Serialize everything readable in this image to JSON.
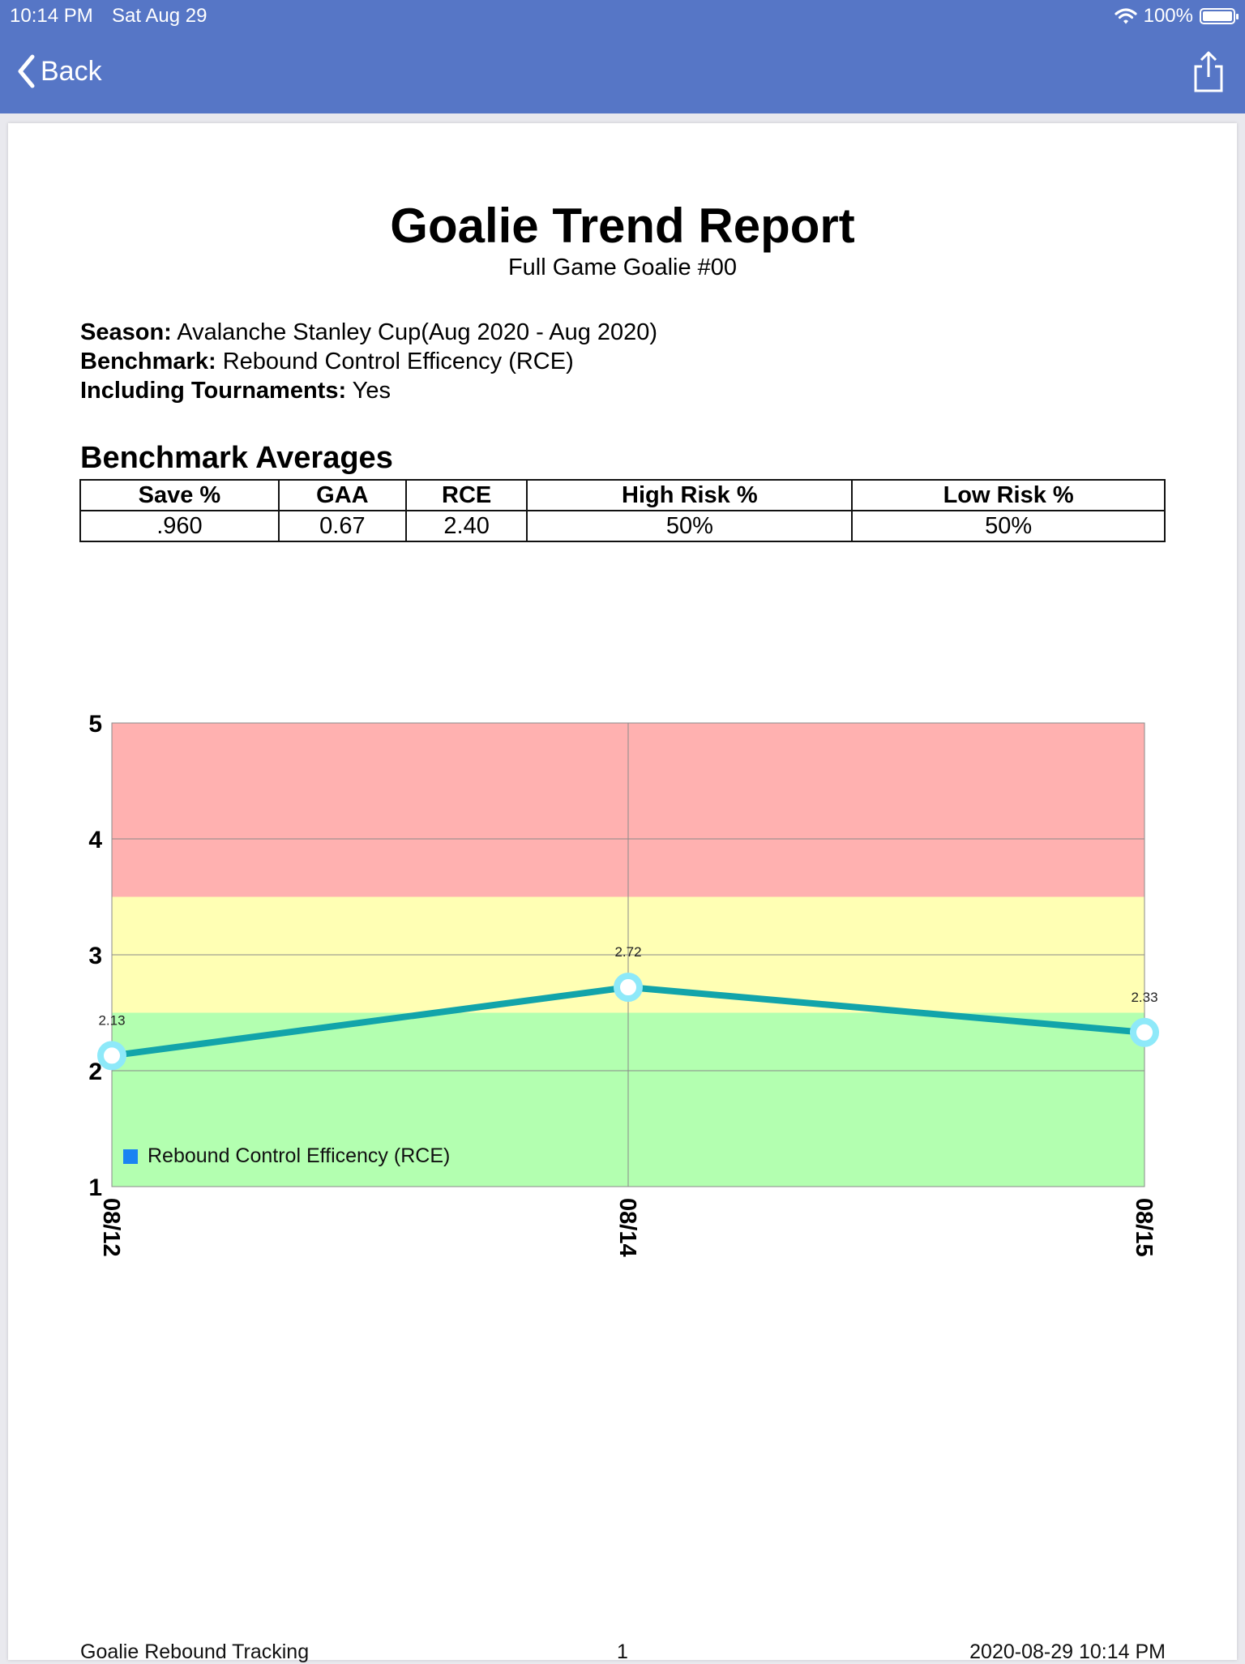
{
  "status_bar": {
    "time": "10:14 PM",
    "date": "Sat Aug 29",
    "battery": "100%"
  },
  "nav": {
    "back_label": "Back",
    "share_icon": "share-icon",
    "back_icon": "chevron-left-icon"
  },
  "report": {
    "title": "Goalie Trend Report",
    "subtitle": "Full Game Goalie #00",
    "season_label": "Season:",
    "season_value": "Avalanche Stanley Cup(Aug 2020 - Aug 2020)",
    "benchmark_label": "Benchmark:",
    "benchmark_value": "Rebound Control Efficency (RCE)",
    "tournaments_label": "Including Tournaments:",
    "tournaments_value": "Yes"
  },
  "averages": {
    "title": "Benchmark Averages",
    "headers": [
      "Save %",
      "GAA",
      "RCE",
      "High Risk %",
      "Low Risk %"
    ],
    "values": [
      ".960",
      "0.67",
      "2.40",
      "50%",
      "50%"
    ]
  },
  "chart_data": {
    "type": "line",
    "x": [
      "08/12",
      "08/14",
      "08/15"
    ],
    "series": [
      {
        "name": "Rebound Control Efficency (RCE)",
        "values": [
          2.13,
          2.72,
          2.33
        ]
      }
    ],
    "data_labels": [
      "2.13",
      "2.72",
      "2.33"
    ],
    "y_ticks": [
      "1",
      "2",
      "3",
      "4",
      "5"
    ],
    "ylim": [
      1,
      5
    ],
    "bands": [
      {
        "from": 1,
        "to": 2.5,
        "color": "#b3ffb0"
      },
      {
        "from": 2.5,
        "to": 3.5,
        "color": "#ffffb4"
      },
      {
        "from": 3.5,
        "to": 5,
        "color": "#ffb1b0"
      }
    ],
    "line_color": "#12a4aa",
    "marker_color": "#8ee9f9",
    "grid": true,
    "legend_position": "bottom-left",
    "legend_swatch_color": "#1a84f2"
  },
  "footer": {
    "left": "Goalie Rebound Tracking",
    "center": "1",
    "right": "2020-08-29 10:14 PM"
  }
}
